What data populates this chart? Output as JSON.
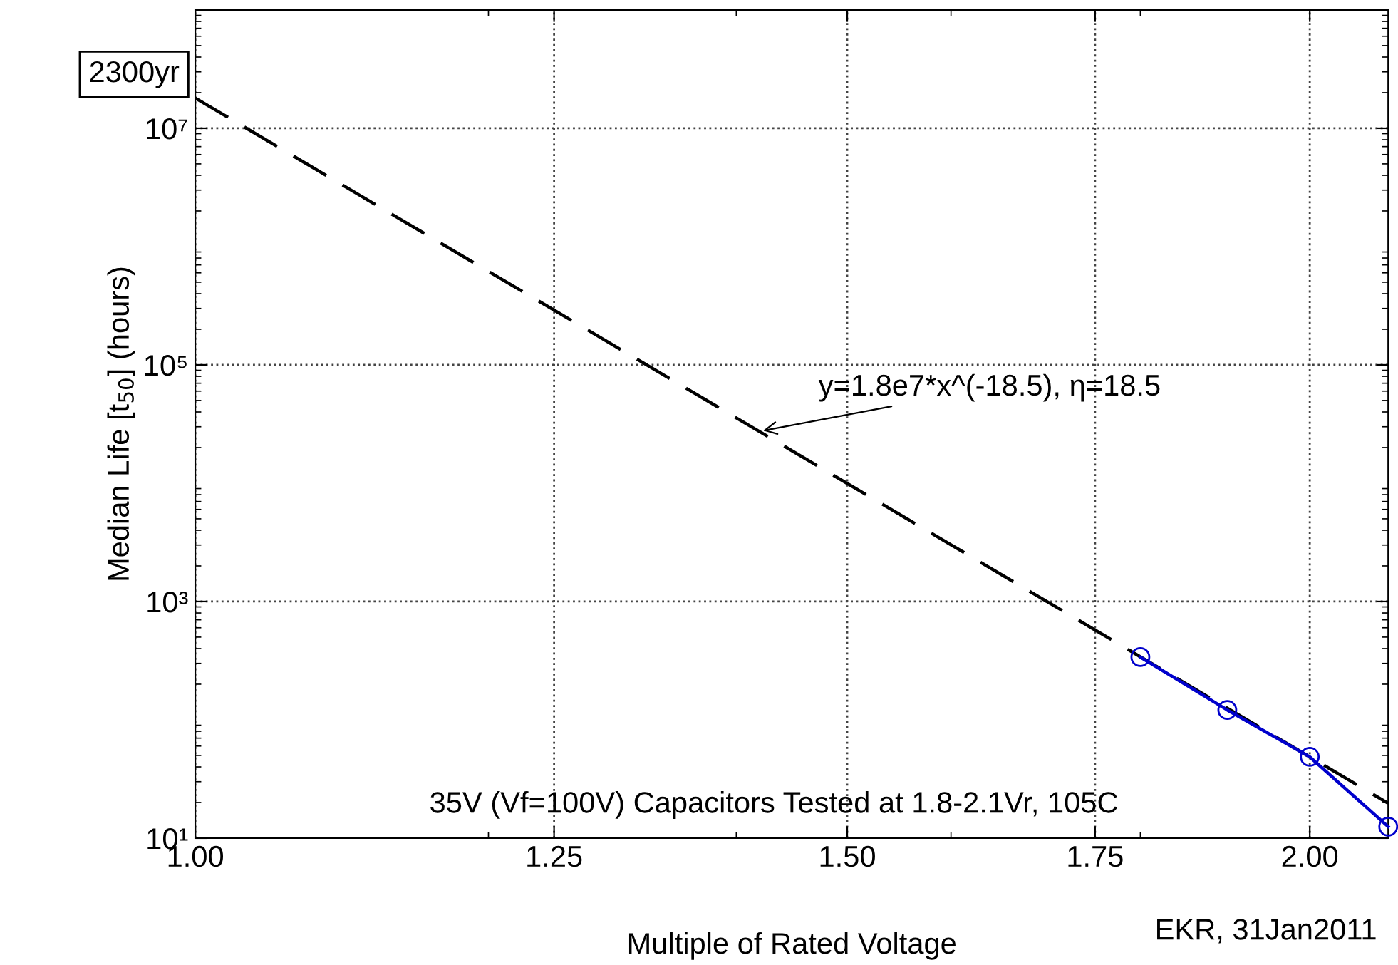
{
  "chart_data": {
    "type": "line",
    "xlabel": "Multiple of Rated Voltage",
    "ylabel": "Median Life [t$_{50}$] (hours)",
    "log": "xy",
    "grid": true,
    "xlim": [
      1.0,
      2.1
    ],
    "ylim": [
      10,
      100000000
    ],
    "xticks": [
      {
        "value": 1.0,
        "label": "1.00"
      },
      1.25,
      {
        "value": 1.5,
        "label": "1.50"
      },
      1.75,
      {
        "value": 2.0,
        "label": "2.00"
      }
    ],
    "yticks": [
      {
        "value": 10,
        "label": "10¹"
      },
      {
        "value": 1000,
        "label": "10³"
      },
      {
        "value": 100000,
        "label": "10⁵"
      },
      {
        "value": 10000000,
        "label": "10⁷"
      }
    ],
    "series": [
      {
        "x": [
          1.0,
          2.1
        ],
        "values": [
          18000000,
          19.7
        ],
        "color": "#000000",
        "line_style": "dashed",
        "marker": "none"
      },
      {
        "x": [
          1.8,
          1.9,
          2.0,
          2.1
        ],
        "values": [
          339,
          121,
          48.6,
          12.5
        ],
        "color": "#0000cc",
        "line_style": "solid",
        "marker": "circle"
      }
    ],
    "annotations": [
      {
        "text": "2300yr",
        "x": 1.0,
        "y": 18000000
      },
      {
        "text": "y=1.8e7*x^(-18.5), η=18.5",
        "x": 1.42,
        "y": 27400
      },
      "35V (Vf=100V) Capacitors Tested at 1.8-2.1Vr, 105C",
      "EKR, 31Jan2011"
    ]
  }
}
